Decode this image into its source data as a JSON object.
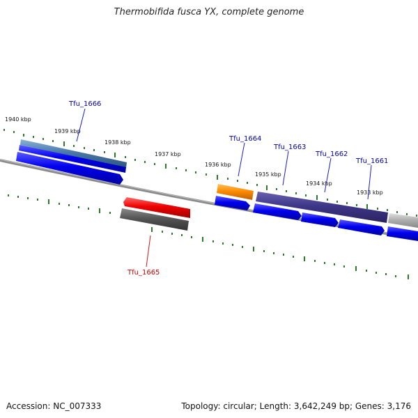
{
  "title": "Thermobifida fusca YX, complete genome",
  "footer": {
    "accession": "Accession: NC_007333",
    "summary": "Topology: circular; Length: 3,642,249 bp; Genes: 3,176"
  },
  "scale_labels": [
    "1940 kbp",
    "1939 kbp",
    "1938 kbp",
    "1937 kbp",
    "1936 kbp",
    "1935 kbp",
    "1934 kbp",
    "1933 kbp"
  ],
  "genes": [
    {
      "id": "Tfu_1666",
      "color": "#0000aa"
    },
    {
      "id": "Tfu_1664",
      "color": "#0000aa"
    },
    {
      "id": "Tfu_1663",
      "color": "#0000aa"
    },
    {
      "id": "Tfu_1662",
      "color": "#0000aa"
    },
    {
      "id": "Tfu_1661",
      "color": "#0000aa"
    },
    {
      "id": "Tfu_1665",
      "color": "#cc0000"
    }
  ],
  "colors": {
    "tick": "#2a7a2a",
    "backbone": "#7a7a7a",
    "cds_blue": "#0000ee",
    "cds_red": "#ee0000",
    "cds_gray": "#555555",
    "cds_orange": "#ff8800",
    "cds_purple": "#3e3688",
    "cds_steel": "#4a7aaa",
    "cds_light": "#b0b0b0"
  }
}
